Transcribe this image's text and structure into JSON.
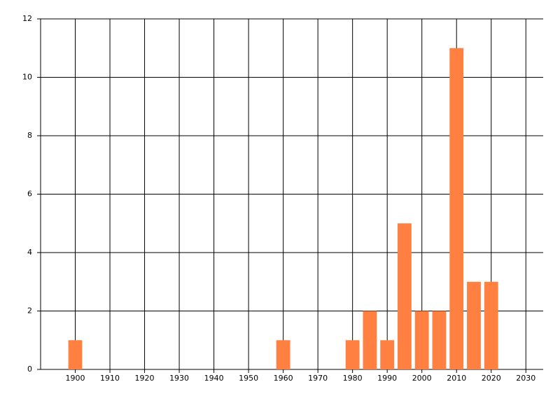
{
  "chart_data": {
    "type": "bar",
    "x": [
      1900,
      1960,
      1980,
      1985,
      1990,
      1995,
      2000,
      2005,
      2010,
      2015,
      2020
    ],
    "values": [
      1,
      1,
      1,
      2,
      1,
      5,
      2,
      2,
      11,
      3,
      3
    ],
    "color": "#ff8040",
    "xlim": [
      1890,
      2035
    ],
    "xticks": [
      1900,
      1910,
      1920,
      1930,
      1940,
      1950,
      1960,
      1970,
      1980,
      1990,
      2000,
      2010,
      2020,
      2030
    ],
    "ylim": [
      0,
      12
    ],
    "yticks": [
      0,
      2,
      4,
      6,
      8,
      10,
      12
    ],
    "grid": true
  }
}
